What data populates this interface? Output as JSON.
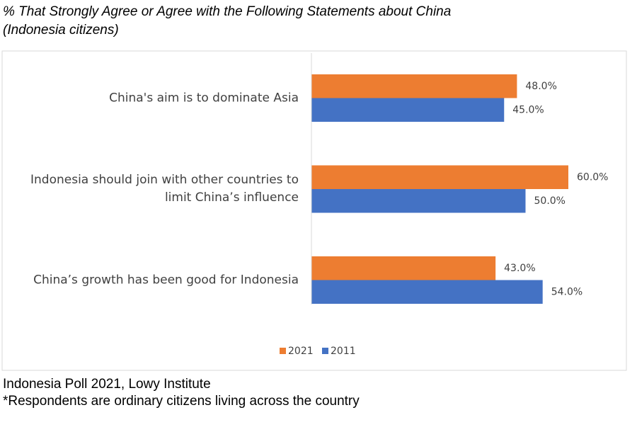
{
  "chart_data": {
    "type": "hbar",
    "title": "% That Strongly Agree or Agree with the Following Statements about China",
    "subtitle": "(Indonesia citizens)",
    "categories": [
      "China's aim is to dominate Asia",
      "Indonesia should join with other countries to limit China’s influence",
      "China’s growth has been good for Indonesia"
    ],
    "series": [
      {
        "name": "2021",
        "color": "#ed7d31",
        "values": [
          48,
          60,
          43
        ],
        "value_labels": [
          "48.0%",
          "60.0%",
          "43.0%"
        ]
      },
      {
        "name": "2011",
        "color": "#4472c4",
        "values": [
          45,
          50,
          54
        ],
        "value_labels": [
          "45.0%",
          "50.0%",
          "54.0%"
        ]
      }
    ],
    "notes": [
      "Indonesia Poll 2021, Lowy Institute",
      "*Respondents are ordinary citizens living across the country"
    ]
  }
}
